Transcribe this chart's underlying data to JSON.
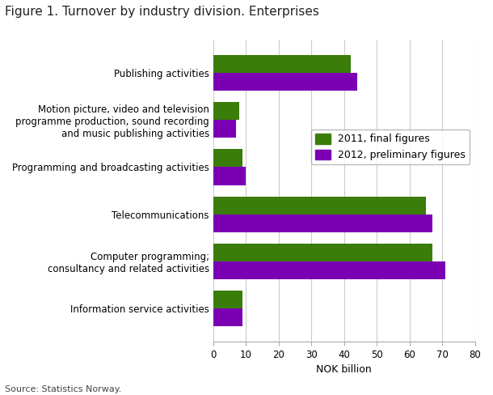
{
  "title": "Figure 1. Turnover by industry division. Enterprises",
  "categories": [
    "Information service activities",
    "Computer programming;\nconsultancy and related activities",
    "Telecommunications",
    "Programming and broadcasting activities",
    "Motion picture, video and television\nprogramme production, sound recording\nand music publishing activities",
    "Publishing activities"
  ],
  "values_2011": [
    9,
    67,
    65,
    9,
    8,
    42
  ],
  "values_2012": [
    9,
    71,
    67,
    10,
    7,
    44
  ],
  "color_2011": "#3a7d0a",
  "color_2012": "#7b00b4",
  "legend_2011": "2011, final figures",
  "legend_2012": "2012, preliminary figures",
  "xlabel": "NOK billion",
  "xlim": [
    0,
    80
  ],
  "xticks": [
    0,
    10,
    20,
    30,
    40,
    50,
    60,
    70,
    80
  ],
  "source": "Source: Statistics Norway.",
  "background_color": "#ffffff",
  "grid_color": "#cccccc",
  "bar_height": 0.38,
  "title_fontsize": 11,
  "tick_fontsize": 8.5,
  "legend_fontsize": 9,
  "xlabel_fontsize": 9,
  "ylabel_fontsize": 9
}
